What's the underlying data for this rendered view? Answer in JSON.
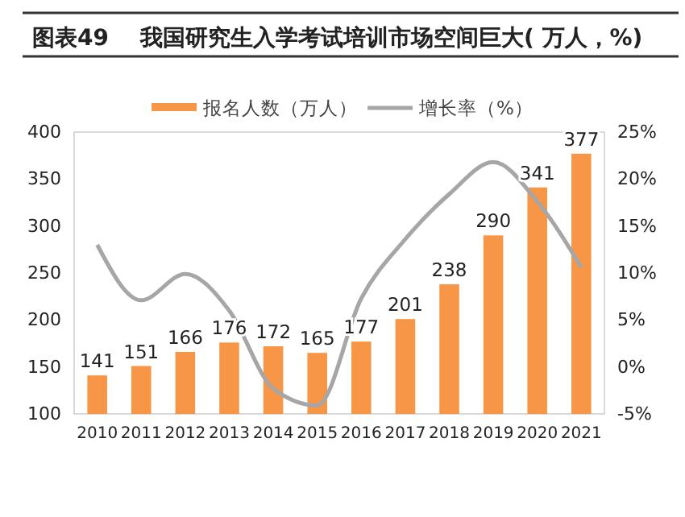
{
  "chart_data": {
    "type": "bar",
    "title": "图表49    我国研究生入学考试培训市场空间巨大( 万人，%)",
    "categories": [
      "2010",
      "2011",
      "2012",
      "2013",
      "2014",
      "2015",
      "2016",
      "2017",
      "2018",
      "2019",
      "2020",
      "2021"
    ],
    "series": [
      {
        "name": "报名人数（万人）",
        "color": "#f79646",
        "values": [
          141,
          151,
          166,
          176,
          172,
          165,
          177,
          201,
          238,
          290,
          341,
          377
        ],
        "value_labels": [
          "141",
          "151",
          "166",
          "176",
          "172",
          "165",
          "177",
          "201",
          "238",
          "290",
          "341",
          "377"
        ]
      },
      {
        "name": "增长率（%）",
        "type": "line",
        "axis": "y2",
        "color": "#a6a6a6",
        "values": [
          13.0,
          7.1,
          9.9,
          6.0,
          -2.3,
          -4.1,
          7.3,
          13.6,
          18.4,
          21.8,
          17.6,
          10.6
        ]
      }
    ],
    "ylim": [
      100,
      400
    ],
    "yticks": [
      100,
      150,
      200,
      250,
      300,
      350,
      400
    ],
    "y2lim": [
      -5,
      25
    ],
    "y2ticks": [
      {
        "value": -5,
        "label": "-5%"
      },
      {
        "value": 0,
        "label": "0%"
      },
      {
        "value": 5,
        "label": "5%"
      },
      {
        "value": 10,
        "label": "10%"
      },
      {
        "value": 15,
        "label": "15%"
      },
      {
        "value": 20,
        "label": "20%"
      },
      {
        "value": 25,
        "label": "25%"
      }
    ],
    "legend": "top",
    "grid": false,
    "marker": "none",
    "line_style": "solid"
  }
}
